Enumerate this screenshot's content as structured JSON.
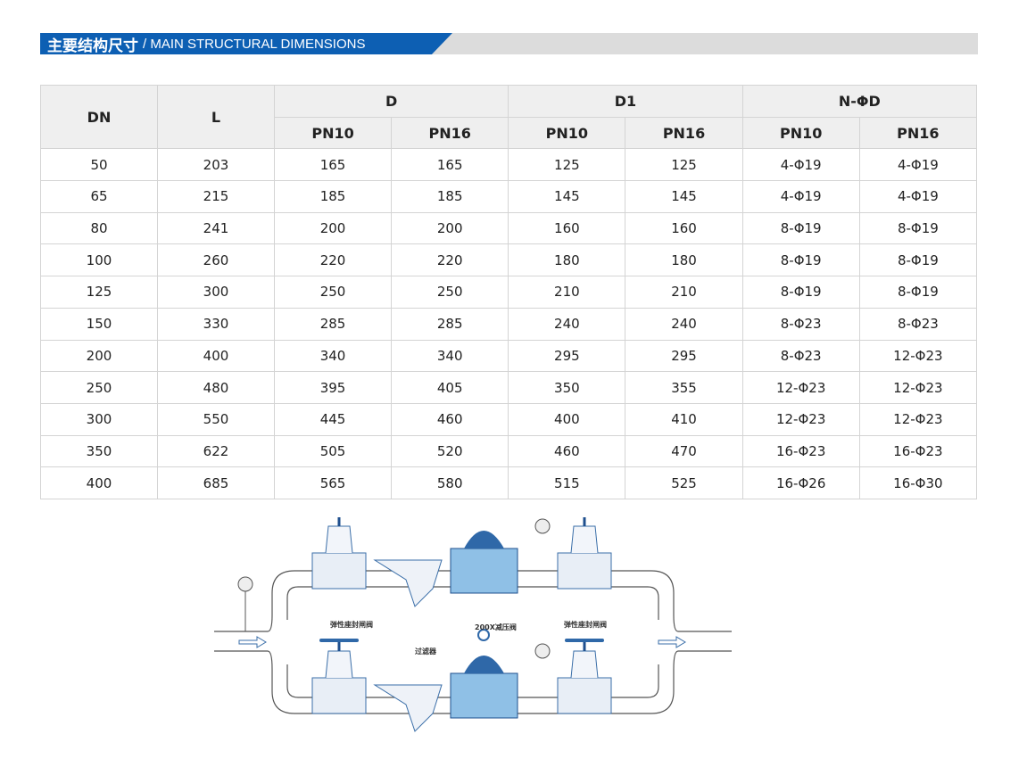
{
  "header": {
    "title_cn": "主要结构尺寸",
    "title_en": "/ MAIN STRUCTURAL DIMENSIONS",
    "accent": "#0d5fb3"
  },
  "table": {
    "headers": {
      "dn": "DN",
      "l": "L",
      "d": "D",
      "d1": "D1",
      "nphid": "N-ΦD",
      "pn10": "PN10",
      "pn16": "PN16"
    },
    "rows": [
      [
        "50",
        "203",
        "165",
        "165",
        "125",
        "125",
        "4-Φ19",
        "4-Φ19"
      ],
      [
        "65",
        "215",
        "185",
        "185",
        "145",
        "145",
        "4-Φ19",
        "4-Φ19"
      ],
      [
        "80",
        "241",
        "200",
        "200",
        "160",
        "160",
        "8-Φ19",
        "8-Φ19"
      ],
      [
        "100",
        "260",
        "220",
        "220",
        "180",
        "180",
        "8-Φ19",
        "8-Φ19"
      ],
      [
        "125",
        "300",
        "250",
        "250",
        "210",
        "210",
        "8-Φ19",
        "8-Φ19"
      ],
      [
        "150",
        "330",
        "285",
        "285",
        "240",
        "240",
        "8-Φ23",
        "8-Φ23"
      ],
      [
        "200",
        "400",
        "340",
        "340",
        "295",
        "295",
        "8-Φ23",
        "12-Φ23"
      ],
      [
        "250",
        "480",
        "395",
        "405",
        "350",
        "355",
        "12-Φ23",
        "12-Φ23"
      ],
      [
        "300",
        "550",
        "445",
        "460",
        "400",
        "410",
        "12-Φ23",
        "12-Φ23"
      ],
      [
        "350",
        "622",
        "505",
        "520",
        "460",
        "470",
        "16-Φ23",
        "16-Φ23"
      ],
      [
        "400",
        "685",
        "565",
        "580",
        "515",
        "525",
        "16-Φ26",
        "16-Φ30"
      ]
    ]
  },
  "diagram": {
    "gate_valve_left": "弹性座封闸阀",
    "reducing_valve": "200X减压阀",
    "gate_valve_right": "弹性座封闸阀",
    "filter": "过滤器"
  }
}
